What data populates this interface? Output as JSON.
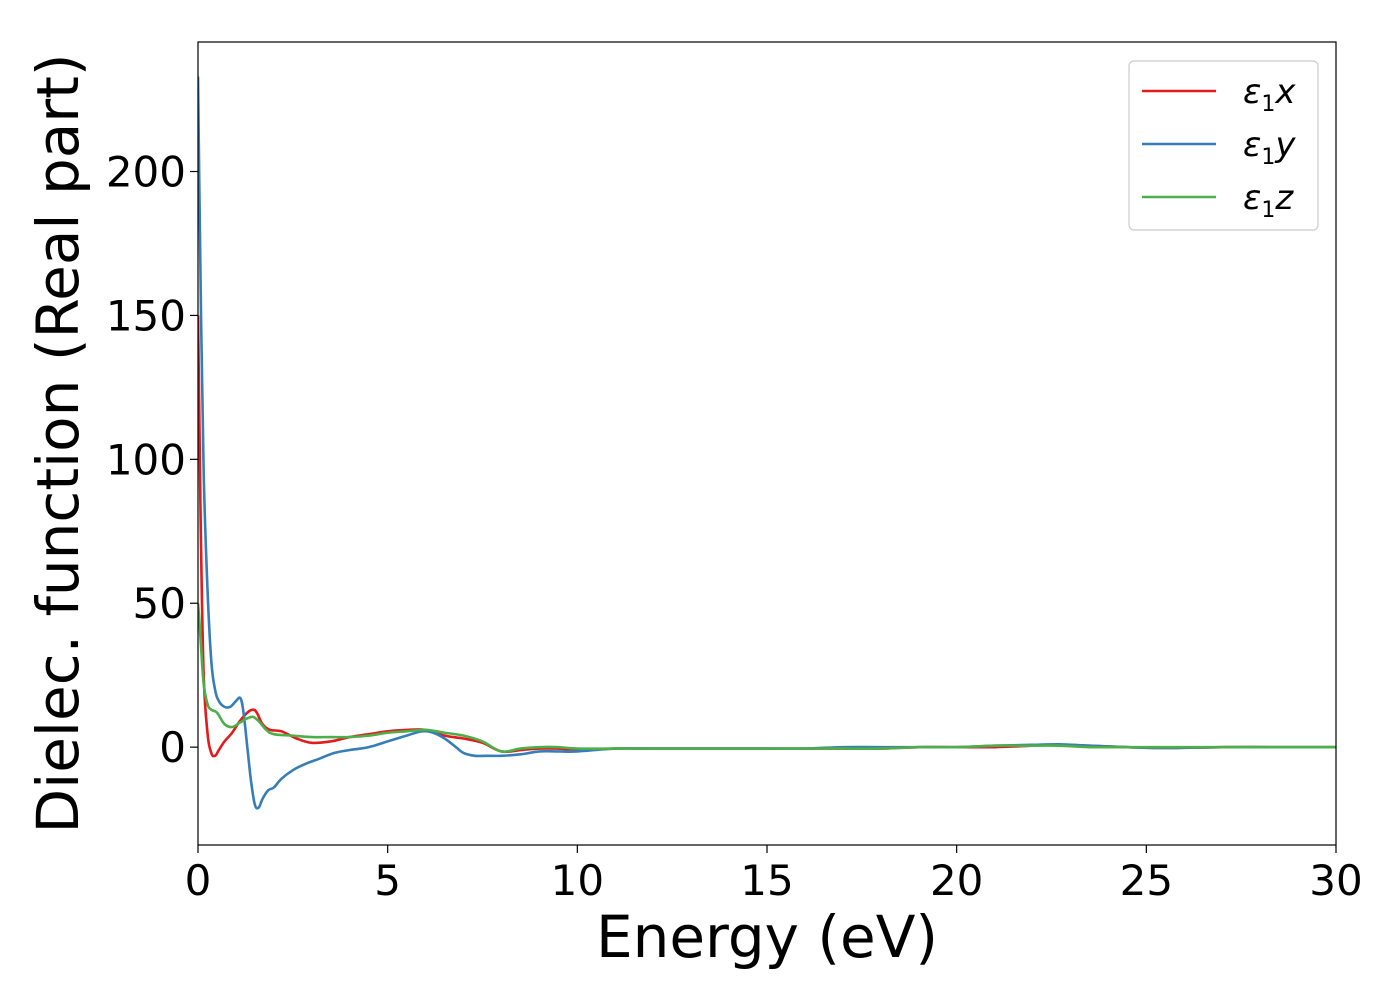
{
  "chart_data": {
    "type": "line",
    "title": "",
    "xlabel": "Energy (eV)",
    "ylabel": "Dielec. function (Real part)",
    "xlim": [
      0,
      30
    ],
    "ylim": [
      -34,
      245
    ],
    "xticks": [
      "0",
      "5",
      "10",
      "15",
      "20",
      "25",
      "30"
    ],
    "yticks": [
      "0",
      "50",
      "100",
      "150",
      "200"
    ],
    "grid": false,
    "legend_position": "top-right",
    "series": [
      {
        "name": "ε1x",
        "legend_main": "ε",
        "legend_sub": "1",
        "legend_var": "x",
        "color": "#e41a1c",
        "x": [
          0,
          0.03,
          0.08,
          0.15,
          0.25,
          0.35,
          0.45,
          0.55,
          0.7,
          0.9,
          1.1,
          1.3,
          1.45,
          1.55,
          1.7,
          1.9,
          2.2,
          2.6,
          3.0,
          3.5,
          4.0,
          4.5,
          5.0,
          5.5,
          6.0,
          6.5,
          7.0,
          7.5,
          8.0,
          8.5,
          9.0,
          9.5,
          10,
          11,
          12,
          13,
          14,
          15,
          16,
          17,
          18,
          19,
          20,
          21,
          22,
          22.7,
          23.5,
          24.5,
          25.5,
          27,
          28.5,
          30
        ],
        "y": [
          150,
          120,
          70,
          25,
          5,
          -2,
          -3,
          -1,
          2,
          5,
          9,
          12,
          13,
          12,
          8,
          6,
          5.5,
          3,
          1.5,
          2,
          3.5,
          4.5,
          5.5,
          6,
          6,
          4,
          3,
          1.5,
          -1.5,
          -1,
          -0.5,
          -0.5,
          -1,
          -0.5,
          -0.5,
          -0.5,
          -0.5,
          -0.5,
          -0.5,
          -0.5,
          -0.5,
          0,
          0,
          0,
          0.5,
          0.8,
          0.5,
          0,
          -0.3,
          0,
          0,
          0
        ]
      },
      {
        "name": "ε1y",
        "legend_main": "ε",
        "legend_sub": "1",
        "legend_var": "y",
        "color": "#377eb8",
        "x": [
          0,
          0.03,
          0.08,
          0.15,
          0.25,
          0.35,
          0.45,
          0.55,
          0.7,
          0.85,
          1.0,
          1.12,
          1.2,
          1.3,
          1.4,
          1.5,
          1.6,
          1.7,
          1.85,
          2.0,
          2.2,
          2.5,
          2.8,
          3.2,
          3.6,
          4.0,
          4.5,
          5.0,
          5.5,
          5.9,
          6.2,
          6.5,
          6.8,
          7.0,
          7.3,
          7.6,
          8.0,
          8.5,
          9.0,
          9.5,
          10,
          11,
          12,
          13,
          14,
          15,
          16,
          17,
          18,
          19,
          20,
          21,
          22,
          22.7,
          23.5,
          24.5,
          25.5,
          27,
          28.5,
          30
        ],
        "y": [
          233,
          200,
          150,
          95,
          55,
          30,
          20,
          16,
          14,
          14,
          16,
          17,
          12,
          0,
          -12,
          -20,
          -21,
          -18,
          -15,
          -14,
          -11,
          -8,
          -6,
          -4,
          -2,
          -1,
          0,
          2,
          4,
          5.5,
          5,
          3,
          0,
          -2,
          -3,
          -3,
          -3,
          -2.5,
          -1.5,
          -1.5,
          -1.5,
          -0.5,
          -0.5,
          -0.5,
          -0.5,
          -0.5,
          -0.5,
          0,
          0,
          0,
          0,
          0.5,
          0.8,
          1.0,
          0.5,
          0,
          -0.3,
          0,
          0,
          0
        ]
      },
      {
        "name": "ε1z",
        "legend_main": "ε",
        "legend_sub": "1",
        "legend_var": "z",
        "color": "#4daf4a",
        "x": [
          0,
          0.03,
          0.08,
          0.15,
          0.25,
          0.35,
          0.5,
          0.7,
          0.9,
          1.1,
          1.3,
          1.45,
          1.6,
          1.8,
          2.0,
          2.5,
          3.0,
          3.5,
          4.0,
          4.5,
          5.0,
          5.5,
          6.0,
          6.5,
          7.0,
          7.5,
          8.0,
          8.5,
          9.0,
          9.5,
          10,
          11,
          12,
          13,
          14,
          15,
          16,
          17,
          18,
          19,
          20,
          21,
          22,
          22.7,
          23.5,
          24.5,
          25.5,
          27,
          28.5,
          30
        ],
        "y": [
          50,
          45,
          35,
          22,
          15,
          13,
          12,
          8,
          7,
          8.5,
          10,
          10.5,
          9,
          6,
          4.5,
          4,
          3.5,
          3.5,
          3.5,
          4,
          5,
          5.5,
          6,
          5,
          4,
          2,
          -1.5,
          -0.5,
          0,
          0,
          -0.5,
          -0.5,
          -0.5,
          -0.5,
          -0.5,
          -0.5,
          -0.5,
          -0.5,
          -0.5,
          0,
          0,
          0.5,
          0.5,
          0.5,
          0,
          0,
          0,
          0,
          0,
          0
        ]
      }
    ]
  }
}
